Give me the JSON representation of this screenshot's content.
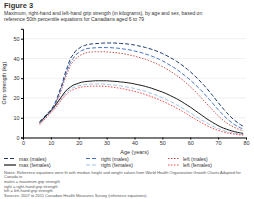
{
  "chart_data": {
    "type": "line",
    "title": "Figure 3",
    "subtitle": "Maximum, right-hand and left-hand grip strength (in kilograms), by age and sex, based on\nreference 50th percentile equations for Canadians aged 6 to 79",
    "xlabel": "Age (years)",
    "ylabel": "Grip strength (kg)",
    "xlim": [
      0,
      80
    ],
    "ylim": [
      0,
      55
    ],
    "xticks": [
      0,
      10,
      20,
      30,
      40,
      50,
      60,
      70,
      80
    ],
    "yticks": [
      0,
      10,
      20,
      30,
      40,
      50
    ],
    "grid": true,
    "legend": "bottom",
    "x": [
      6,
      7,
      8,
      9,
      10,
      11,
      12,
      13,
      14,
      15,
      16,
      17,
      18,
      19,
      20,
      21,
      22,
      23,
      24,
      25,
      26,
      27,
      28,
      29,
      30,
      31,
      32,
      33,
      34,
      35,
      36,
      37,
      38,
      39,
      40,
      41,
      42,
      43,
      44,
      45,
      46,
      47,
      48,
      49,
      50,
      51,
      52,
      53,
      54,
      55,
      56,
      57,
      58,
      59,
      60,
      61,
      62,
      63,
      64,
      65,
      66,
      67,
      68,
      69,
      70,
      71,
      72,
      73,
      74,
      75,
      76,
      77,
      78,
      79
    ],
    "series": [
      {
        "name": "max (males)",
        "color": "#1a3a6b",
        "line_style": "dashed",
        "values": [
          8,
          9.5,
          11,
          12.5,
          14,
          16,
          19,
          23,
          27,
          32,
          36,
          40,
          42,
          44,
          45,
          46,
          46.5,
          47,
          47.2,
          47.4,
          47.5,
          47.6,
          47.7,
          47.8,
          47.8,
          47.8,
          47.8,
          47.8,
          47.7,
          47.6,
          47.5,
          47.4,
          47.2,
          47.0,
          46.8,
          46.5,
          46.2,
          45.9,
          45.5,
          45.1,
          44.7,
          44.2,
          43.7,
          43.1,
          42.5,
          41.8,
          41.1,
          40.3,
          39.5,
          38.6,
          37.7,
          36.7,
          35.6,
          34.5,
          33.3,
          32.0,
          30.7,
          29.3,
          27.8,
          26.3,
          24.7,
          23.0,
          21.3,
          19.5,
          17.7,
          16.0,
          14.3,
          12.7,
          11.2,
          9.8,
          8.6,
          7.5,
          6.5,
          5.7
        ]
      },
      {
        "name": "right (males)",
        "color": "#4472c4",
        "line_style": "dashed",
        "values": [
          7.5,
          9,
          10.5,
          12,
          13.5,
          15.5,
          18.5,
          22,
          26,
          30.5,
          34.5,
          38,
          40,
          42,
          43,
          44,
          44.5,
          45,
          45.2,
          45.3,
          45.4,
          45.5,
          45.5,
          45.5,
          45.5,
          45.5,
          45.4,
          45.3,
          45.2,
          45.0,
          44.8,
          44.6,
          44.4,
          44.1,
          43.8,
          43.4,
          43.1,
          42.7,
          42.2,
          41.8,
          41.3,
          40.7,
          40.1,
          39.5,
          38.8,
          38.0,
          37.2,
          36.4,
          35.5,
          34.6,
          33.6,
          32.5,
          31.4,
          30.3,
          29.1,
          27.8,
          26.5,
          25.1,
          23.7,
          22.2,
          20.6,
          19.0,
          17.4,
          15.7,
          14.1,
          12.6,
          11.1,
          9.7,
          8.5,
          7.4,
          6.4,
          5.6,
          4.9,
          4.3
        ]
      },
      {
        "name": "left (males)",
        "color": "#c0504d",
        "line_style": "dotted",
        "values": [
          7,
          8.5,
          10,
          11.5,
          13,
          15,
          17.5,
          21,
          25,
          29.5,
          33,
          36.5,
          38.5,
          40,
          41,
          42,
          42.5,
          43,
          43.2,
          43.3,
          43.4,
          43.4,
          43.4,
          43.4,
          43.3,
          43.2,
          43.1,
          43.0,
          42.8,
          42.6,
          42.4,
          42.1,
          41.8,
          41.5,
          41.2,
          40.8,
          40.4,
          40.0,
          39.5,
          39.0,
          38.5,
          37.9,
          37.3,
          36.6,
          35.9,
          35.1,
          34.3,
          33.4,
          32.5,
          31.5,
          30.5,
          29.4,
          28.2,
          27.0,
          25.7,
          24.4,
          23.0,
          21.5,
          20.0,
          18.5,
          17.0,
          15.4,
          13.9,
          12.4,
          11.0,
          9.7,
          8.5,
          7.4,
          6.5,
          5.7,
          5.0,
          4.4,
          3.8,
          3.4
        ]
      },
      {
        "name": "max (females)",
        "color": "#1a1a1a",
        "line_style": "solid",
        "values": [
          7.5,
          9,
          10.5,
          12,
          13.5,
          15,
          17,
          19,
          21,
          23,
          24.5,
          25.5,
          26.5,
          27,
          27.5,
          28,
          28.2,
          28.4,
          28.5,
          28.6,
          28.7,
          28.7,
          28.7,
          28.7,
          28.7,
          28.6,
          28.5,
          28.4,
          28.3,
          28.1,
          28.0,
          27.8,
          27.6,
          27.4,
          27.1,
          26.8,
          26.5,
          26.2,
          25.8,
          25.4,
          25.0,
          24.5,
          24.0,
          23.5,
          23.0,
          22.4,
          21.8,
          21.1,
          20.4,
          19.7,
          18.9,
          18.1,
          17.2,
          16.3,
          15.4,
          14.4,
          13.4,
          12.4,
          11.4,
          10.4,
          9.4,
          8.5,
          7.6,
          6.8,
          6.0,
          5.3,
          4.7,
          4.2,
          3.7,
          3.3,
          2.9,
          2.6,
          2.3,
          2.1
        ]
      },
      {
        "name": "right (females)",
        "color": "#9dc3e6",
        "line_style": "dashed",
        "values": [
          7,
          8.5,
          10,
          11.5,
          13,
          14.5,
          16,
          18,
          20,
          22,
          23.5,
          24.5,
          25.2,
          25.8,
          26.2,
          26.5,
          26.7,
          26.9,
          27.0,
          27.1,
          27.1,
          27.1,
          27.1,
          27.0,
          26.9,
          26.8,
          26.7,
          26.5,
          26.3,
          26.1,
          25.9,
          25.6,
          25.4,
          25.1,
          24.8,
          24.4,
          24.1,
          23.7,
          23.3,
          22.8,
          22.3,
          21.8,
          21.3,
          20.7,
          20.1,
          19.5,
          18.8,
          18.1,
          17.4,
          16.6,
          15.8,
          15.0,
          14.2,
          13.3,
          12.5,
          11.6,
          10.7,
          9.8,
          8.9,
          8.1,
          7.3,
          6.5,
          5.8,
          5.1,
          4.5,
          4.0,
          3.5,
          3.1,
          2.7,
          2.4,
          2.1,
          1.9,
          1.7,
          1.5
        ]
      },
      {
        "name": "left (females)",
        "color": "#ff4444",
        "line_style": "dotted",
        "values": [
          6.5,
          8,
          9.5,
          11,
          12.5,
          14,
          15.5,
          17.5,
          19.5,
          21,
          22.5,
          23.5,
          24.2,
          24.8,
          25.2,
          25.5,
          25.7,
          25.8,
          25.9,
          26.0,
          26.0,
          26.0,
          26.0,
          25.9,
          25.8,
          25.7,
          25.5,
          25.3,
          25.1,
          24.9,
          24.6,
          24.3,
          24.0,
          23.7,
          23.4,
          23.0,
          22.6,
          22.2,
          21.7,
          21.2,
          20.7,
          20.2,
          19.6,
          19.0,
          18.4,
          17.8,
          17.1,
          16.4,
          15.7,
          14.9,
          14.2,
          13.4,
          12.5,
          11.7,
          10.8,
          10.0,
          9.1,
          8.3,
          7.5,
          6.7,
          6.0,
          5.3,
          4.7,
          4.1,
          3.6,
          3.2,
          2.8,
          2.4,
          2.1,
          1.9,
          1.7,
          1.5,
          1.3,
          1.2
        ]
      }
    ],
    "notes": [
      "Notes: Reference equations were fit with median height and weight values from World Health Organization Growth Charts Adapted for Canada in",
      "males = maximum grip strength",
      "right = right-hand grip strength",
      "left = left-hand grip strength",
      "Sources: 2007 to 2011 Canadian Health Measures Survey (reference equations)."
    ]
  }
}
